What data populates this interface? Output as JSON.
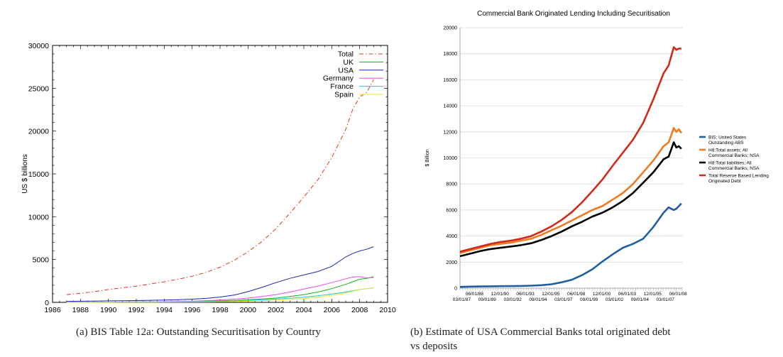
{
  "captions": {
    "a": "(a)  BIS Table 12a: Outstanding Securitisation by Country",
    "b_line1": "(b)  Estimate of USA Commercial Banks total originated debt",
    "b_line2": "vs deposits"
  },
  "chart_data": [
    {
      "type": "line",
      "title": "",
      "xlabel": "",
      "ylabel": "US $ billions",
      "xlim": [
        1986,
        2010
      ],
      "ylim": [
        0,
        30000
      ],
      "xticks": [
        1986,
        1988,
        1990,
        1992,
        1994,
        1996,
        1998,
        2000,
        2002,
        2004,
        2006,
        2008,
        2010
      ],
      "yticks": [
        0,
        5000,
        10000,
        15000,
        20000,
        25000,
        30000
      ],
      "grid": false,
      "legend": "top-right",
      "x": [
        1987,
        1988,
        1989,
        1990,
        1991,
        1992,
        1993,
        1994,
        1995,
        1996,
        1997,
        1998,
        1999,
        2000,
        2001,
        2002,
        2003,
        2004,
        2005,
        2006,
        2007,
        2007.5,
        2008,
        2008.5,
        2009
      ],
      "series": [
        {
          "name": "Total",
          "color": "#e03a1e",
          "dash": "6,3,1.5,3",
          "values": [
            900,
            1050,
            1250,
            1500,
            1700,
            1900,
            2150,
            2400,
            2700,
            3050,
            3500,
            4100,
            4900,
            5900,
            7100,
            8600,
            10400,
            12300,
            14300,
            16900,
            20200,
            22500,
            24000,
            24500,
            26000
          ]
        },
        {
          "name": "UK",
          "color": "#13b413",
          "dash": "",
          "values": [
            10,
            15,
            20,
            30,
            40,
            50,
            60,
            75,
            90,
            110,
            140,
            180,
            230,
            300,
            390,
            500,
            680,
            900,
            1200,
            1600,
            2100,
            2400,
            2700,
            2800,
            3000
          ]
        },
        {
          "name": "USA",
          "color": "#1c26b4",
          "dash": "",
          "values": [
            120,
            130,
            150,
            170,
            190,
            210,
            240,
            270,
            310,
            370,
            460,
            620,
            850,
            1250,
            1750,
            2300,
            2800,
            3200,
            3600,
            4200,
            5300,
            5700,
            6000,
            6200,
            6500
          ]
        },
        {
          "name": "Germany",
          "color": "#e84ce8",
          "dash": "",
          "values": [
            20,
            25,
            30,
            40,
            50,
            60,
            75,
            95,
            120,
            150,
            200,
            270,
            370,
            500,
            680,
            900,
            1200,
            1550,
            1900,
            2300,
            2750,
            2950,
            3000,
            2850,
            2900
          ]
        },
        {
          "name": "France",
          "color": "#22c8c8",
          "dash": "",
          "values": [
            10,
            15,
            20,
            30,
            40,
            50,
            60,
            70,
            85,
            100,
            120,
            150,
            190,
            240,
            300,
            380,
            480,
            600,
            760,
            960,
            1200,
            1350,
            1500,
            1600,
            1700
          ]
        },
        {
          "name": "Spain",
          "color": "#e6e62a",
          "dash": "",
          "values": [
            5,
            8,
            10,
            12,
            15,
            20,
            25,
            30,
            40,
            50,
            65,
            85,
            110,
            150,
            200,
            260,
            340,
            450,
            600,
            800,
            1100,
            1300,
            1500,
            1600,
            1700
          ]
        }
      ]
    },
    {
      "type": "line",
      "title": "Commercial Bank Originated Lending Including Securitisation",
      "xlabel": "",
      "ylabel": "$ Billion",
      "ylim": [
        0,
        20000
      ],
      "yticks": [
        0,
        2000,
        4000,
        6000,
        8000,
        10000,
        12000,
        14000,
        16000,
        18000,
        20000
      ],
      "grid": true,
      "legend": "right",
      "x_domain": [
        1987.0,
        2008.9
      ],
      "xtick_labels_top": [
        {
          "label": "06/01/88",
          "x": 1988.42
        },
        {
          "label": "12/01/90",
          "x": 1990.92
        },
        {
          "label": "06/01/93",
          "x": 1993.42
        },
        {
          "label": "12/01/95",
          "x": 1995.92
        },
        {
          "label": "06/01/98",
          "x": 1998.42
        },
        {
          "label": "12/01/00",
          "x": 2000.92
        },
        {
          "label": "06/01/03",
          "x": 2003.42
        },
        {
          "label": "12/01/05",
          "x": 2005.92
        },
        {
          "label": "06/01/08",
          "x": 2008.42
        }
      ],
      "xtick_labels_bottom": [
        {
          "label": "03/01/87",
          "x": 1987.17
        },
        {
          "label": "09/01/89",
          "x": 1989.67
        },
        {
          "label": "03/01/92",
          "x": 1992.17
        },
        {
          "label": "09/01/94",
          "x": 1994.67
        },
        {
          "label": "03/01/97",
          "x": 1997.17
        },
        {
          "label": "09/01/99",
          "x": 1999.67
        },
        {
          "label": "03/01/02",
          "x": 2002.17
        },
        {
          "label": "09/01/04",
          "x": 2004.67
        },
        {
          "label": "03/01/07",
          "x": 2007.17
        }
      ],
      "x": [
        1987,
        1988,
        1989,
        1990,
        1991,
        1992,
        1993,
        1994,
        1995,
        1996,
        1997,
        1998,
        1999,
        2000,
        2001,
        2002,
        2003,
        2004,
        2005,
        2006,
        2007,
        2007.5,
        2008,
        2008.25,
        2008.5,
        2008.75
      ],
      "series": [
        {
          "name": "BIS: United States Outstanding ABS",
          "label_lines": [
            "BIS: United States",
            "Outstanding ABS"
          ],
          "color": "#1f5fa0",
          "values": [
            100,
            120,
            130,
            140,
            150,
            160,
            170,
            190,
            230,
            300,
            450,
            650,
            1000,
            1450,
            2050,
            2600,
            3100,
            3400,
            3800,
            4700,
            5800,
            6200,
            6000,
            6100,
            6300,
            6500
          ]
        },
        {
          "name": "H8:Total assets; All Commercial Banks; NSA",
          "label_lines": [
            "H8:Total assets; All",
            "Commercial Banks; NSA"
          ],
          "color": "#f07a20",
          "values": [
            2700,
            2900,
            3100,
            3300,
            3400,
            3500,
            3650,
            3800,
            4100,
            4450,
            4800,
            5200,
            5600,
            6000,
            6300,
            6800,
            7300,
            8000,
            8900,
            9800,
            10900,
            11200,
            12300,
            12000,
            12200,
            11900
          ]
        },
        {
          "name": "H8:Total liabilities; All Commercial Banks; NSA",
          "label_lines": [
            "H8:Total liabilities; All",
            "Commercial Banks; NSA"
          ],
          "color": "#000000",
          "values": [
            2450,
            2650,
            2850,
            3000,
            3100,
            3200,
            3300,
            3450,
            3700,
            4000,
            4350,
            4750,
            5100,
            5500,
            5800,
            6200,
            6700,
            7300,
            8100,
            8900,
            9900,
            10100,
            11200,
            10800,
            10900,
            10700
          ]
        },
        {
          "name": "Total Reserve Based Lending Originated Debt",
          "label_lines": [
            "Total Reserve Based Lending",
            "Originated Debt"
          ],
          "color": "#d02a1a",
          "values": [
            2800,
            3000,
            3200,
            3400,
            3550,
            3650,
            3800,
            4000,
            4350,
            4750,
            5250,
            5850,
            6600,
            7450,
            8350,
            9400,
            10400,
            11400,
            12700,
            14500,
            16500,
            17100,
            18500,
            18300,
            18400,
            18400
          ]
        }
      ]
    }
  ]
}
